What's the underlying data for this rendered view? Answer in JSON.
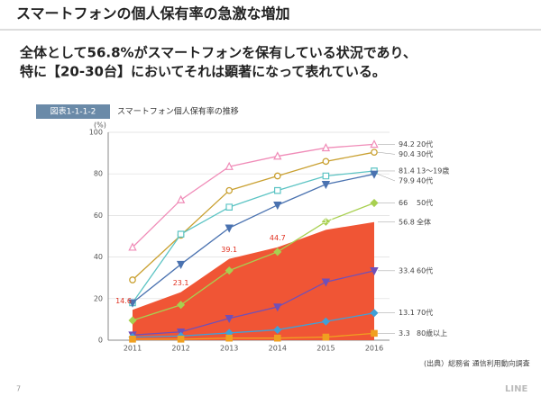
{
  "slide": {
    "title": "スマートフォンの個人保有率の急激な増加",
    "headline": [
      "全体として56.8%がスマートフォンを保有している状況であり、",
      "特に【20-30台】においてそれは顕著になって表れている。"
    ],
    "figure_label": "図表1-1-1-2",
    "source": "(出典）総務省 通信利用動向調査",
    "page": "7",
    "logo": "LINE"
  },
  "chart_data": {
    "type": "line",
    "title": "スマートフォン個人保有率の推移",
    "y_unit": "(%)",
    "categories": [
      "2011",
      "2012",
      "2013",
      "2014",
      "2015",
      "2016"
    ],
    "ylim": [
      0,
      100
    ],
    "yticks": [
      0,
      20,
      40,
      60,
      80,
      100
    ],
    "grid": true,
    "area": {
      "name": "全体",
      "color": "#f05535",
      "label_color": "#e03020",
      "values": [
        14.6,
        23.1,
        39.1,
        44.7,
        53.1,
        56.8
      ]
    },
    "series": [
      {
        "name": "20代",
        "color": "#f08cb8",
        "marker": "triangle",
        "values": [
          44.7,
          67.5,
          83.5,
          88.5,
          92.5,
          94.2
        ]
      },
      {
        "name": "30代",
        "color": "#c9a030",
        "marker": "circle",
        "values": [
          29,
          50.5,
          72,
          79,
          86,
          90.4
        ]
      },
      {
        "name": "13～19歳",
        "color": "#5cc4c4",
        "marker": "square",
        "values": [
          18,
          51,
          64,
          72,
          79,
          81.4
        ]
      },
      {
        "name": "40代",
        "color": "#4a72b0",
        "marker": "triangle-down",
        "values": [
          18,
          36.5,
          54,
          65,
          75,
          79.9
        ]
      },
      {
        "name": "50代",
        "color": "#a8d050",
        "marker": "diamond",
        "values": [
          9.5,
          17,
          33.5,
          42.5,
          57,
          66.0
        ]
      },
      {
        "name": "60代",
        "color": "#7050b8",
        "marker": "triangle-down",
        "values": [
          2.5,
          4,
          10.5,
          16,
          28,
          33.4
        ]
      },
      {
        "name": "70代",
        "color": "#40a0d8",
        "marker": "diamond",
        "values": [
          1.5,
          2,
          3.5,
          5,
          9,
          13.1
        ]
      },
      {
        "name": "80歳以上",
        "color": "#f0a020",
        "marker": "square",
        "values": [
          0.5,
          0.5,
          1,
          1,
          1.5,
          3.3
        ]
      }
    ]
  }
}
